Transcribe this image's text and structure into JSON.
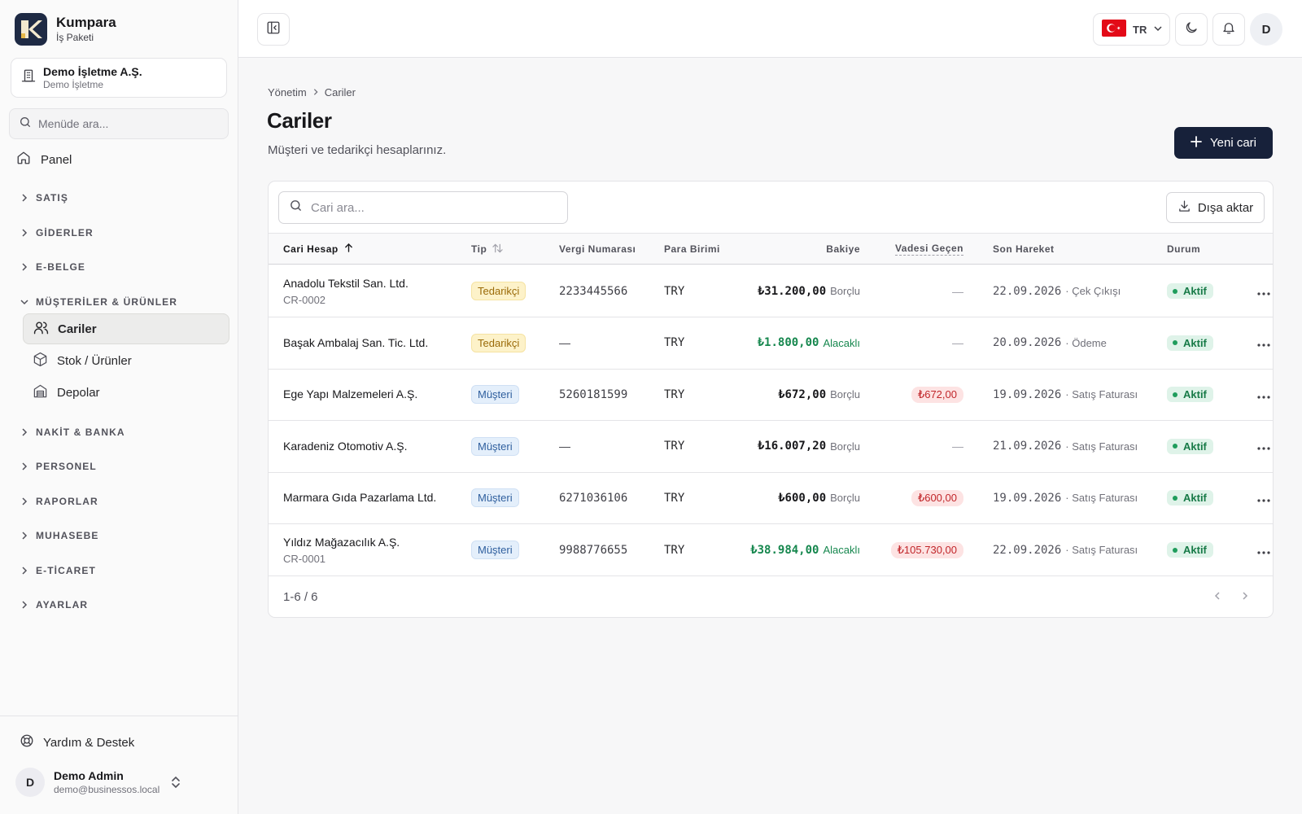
{
  "brand": {
    "name": "Kumpara",
    "subtitle": "İş Paketi",
    "logo_letter": "K"
  },
  "org": {
    "name": "Demo İşletme A.Ş.",
    "sub": "Demo İşletme"
  },
  "sidebar": {
    "search_placeholder": "Menüde ara...",
    "panel_label": "Panel",
    "sections": [
      {
        "label": "SATIŞ"
      },
      {
        "label": "GİDERLER"
      },
      {
        "label": "E-BELGE"
      },
      {
        "label": "MÜŞTERİLER & ÜRÜNLER"
      },
      {
        "label": "NAKİT & BANKA"
      },
      {
        "label": "PERSONEL"
      },
      {
        "label": "RAPORLAR"
      },
      {
        "label": "MUHASEBE"
      },
      {
        "label": "E-TİCARET"
      },
      {
        "label": "AYARLAR"
      }
    ],
    "subitems": [
      {
        "label": "Cariler",
        "icon": "users-icon",
        "active": true
      },
      {
        "label": "Stok / Ürünler",
        "icon": "box-icon",
        "active": false
      },
      {
        "label": "Depolar",
        "icon": "warehouse-icon",
        "active": false
      }
    ],
    "help_label": "Yardım & Destek",
    "user": {
      "initial": "D",
      "name": "Demo Admin",
      "email": "demo@businessos.local"
    }
  },
  "topbar": {
    "lang_code": "TR",
    "avatar_initial": "D"
  },
  "breadcrumb": {
    "parent": "Yönetim",
    "current": "Cariler"
  },
  "page": {
    "title": "Cariler",
    "subtitle": "Müşteri ve tedarikçi hesaplarınız.",
    "new_button": "Yeni cari"
  },
  "table": {
    "search_placeholder": "Cari ara...",
    "export_label": "Dışa aktar",
    "columns": {
      "account": "Cari Hesap",
      "type": "Tip",
      "tax_no": "Vergi Numarası",
      "currency": "Para Birimi",
      "balance": "Bakiye",
      "overdue": "Vadesi Geçen",
      "last": "Son Hareket",
      "status": "Durum"
    },
    "rows": [
      {
        "name": "Anadolu Tekstil San. Ltd.",
        "code": "CR-0002",
        "type": "Tedarikçi",
        "type_kind": "sup",
        "tax_no": "2233445566",
        "currency": "TRY",
        "balance": "₺31.200,00",
        "balance_state": "Borçlu",
        "balance_kind": "debit",
        "overdue": "—",
        "last_date": "22.09.2026",
        "last_kind": "· Çek Çıkışı",
        "status": "Aktif"
      },
      {
        "name": "Başak Ambalaj San. Tic. Ltd.",
        "code": "",
        "type": "Tedarikçi",
        "type_kind": "sup",
        "tax_no": "—",
        "currency": "TRY",
        "balance": "₺1.800,00",
        "balance_state": "Alacaklı",
        "balance_kind": "credit",
        "overdue": "—",
        "last_date": "20.09.2026",
        "last_kind": "· Ödeme",
        "status": "Aktif"
      },
      {
        "name": "Ege Yapı Malzemeleri A.Ş.",
        "code": "",
        "type": "Müşteri",
        "type_kind": "cus",
        "tax_no": "5260181599",
        "currency": "TRY",
        "balance": "₺672,00",
        "balance_state": "Borçlu",
        "balance_kind": "debit",
        "overdue": "₺672,00",
        "last_date": "19.09.2026",
        "last_kind": "· Satış Faturası",
        "status": "Aktif"
      },
      {
        "name": "Karadeniz Otomotiv A.Ş.",
        "code": "",
        "type": "Müşteri",
        "type_kind": "cus",
        "tax_no": "—",
        "currency": "TRY",
        "balance": "₺16.007,20",
        "balance_state": "Borçlu",
        "balance_kind": "debit",
        "overdue": "—",
        "last_date": "21.09.2026",
        "last_kind": "· Satış Faturası",
        "status": "Aktif"
      },
      {
        "name": "Marmara Gıda Pazarlama Ltd.",
        "code": "",
        "type": "Müşteri",
        "type_kind": "cus",
        "tax_no": "6271036106",
        "currency": "TRY",
        "balance": "₺600,00",
        "balance_state": "Borçlu",
        "balance_kind": "debit",
        "overdue": "₺600,00",
        "last_date": "19.09.2026",
        "last_kind": "· Satış Faturası",
        "status": "Aktif"
      },
      {
        "name": "Yıldız Mağazacılık A.Ş.",
        "code": "CR-0001",
        "type": "Müşteri",
        "type_kind": "cus",
        "tax_no": "9988776655",
        "currency": "TRY",
        "balance": "₺38.984,00",
        "balance_state": "Alacaklı",
        "balance_kind": "credit",
        "overdue": "₺105.730,00",
        "last_date": "22.09.2026",
        "last_kind": "· Satış Faturası",
        "status": "Aktif"
      }
    ],
    "pager_text": "1-6 / 6"
  },
  "colors": {
    "brand_navy": "#17213a",
    "credit_green": "#16874e",
    "overdue_red": "#c1262a",
    "active_green": "#177a47"
  }
}
